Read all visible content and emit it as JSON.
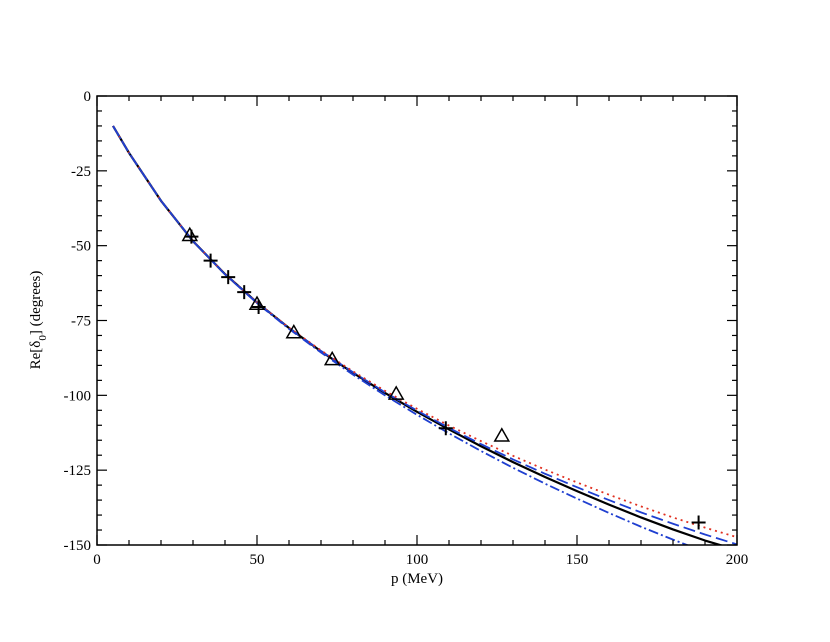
{
  "chart_data": {
    "type": "line",
    "title": "",
    "xlabel": "p (MeV)",
    "ylabel_base": "Re[δ",
    "ylabel_sub": "0",
    "ylabel_rest": "] (degrees)",
    "xlim": [
      0,
      200
    ],
    "ylim": [
      -150,
      0
    ],
    "x_ticks": [
      0,
      50,
      100,
      150,
      200
    ],
    "y_ticks": [
      0,
      -25,
      -50,
      -75,
      -100,
      -125,
      -150
    ],
    "x_minor_step": 10,
    "y_minor_step": 5,
    "grid": false,
    "legend": "none",
    "series": [
      {
        "style": "solid",
        "color": "#000000",
        "x": [
          5,
          10,
          20,
          30,
          40,
          50,
          60,
          70,
          80,
          90,
          100,
          110,
          120,
          130,
          140,
          150,
          160,
          170,
          180,
          190,
          200
        ],
        "y": [
          -10,
          -19,
          -35,
          -48.5,
          -59.5,
          -69,
          -77.5,
          -85.3,
          -92.5,
          -99.2,
          -105.5,
          -111.4,
          -117,
          -122.3,
          -127.3,
          -132,
          -136.5,
          -140.8,
          -144.8,
          -148.5,
          -151.7
        ]
      },
      {
        "style": "dashed",
        "color": "#1f3fd0",
        "x": [
          5,
          10,
          20,
          30,
          40,
          50,
          60,
          70,
          80,
          90,
          100,
          110,
          120,
          130,
          140,
          150,
          160,
          170,
          180,
          190,
          200
        ],
        "y": [
          -10,
          -19,
          -35,
          -48.5,
          -59.5,
          -69,
          -77.5,
          -85.2,
          -92.3,
          -99,
          -105.1,
          -110.9,
          -116.3,
          -121.4,
          -126.2,
          -130.7,
          -135,
          -139.1,
          -142.9,
          -146.5,
          -149.8
        ]
      },
      {
        "style": "dotted",
        "color": "#e03020",
        "x": [
          5,
          10,
          20,
          30,
          40,
          50,
          60,
          70,
          80,
          90,
          100,
          110,
          120,
          130,
          140,
          150,
          160,
          170,
          180,
          190,
          200
        ],
        "y": [
          -10,
          -19,
          -35,
          -48.5,
          -59.5,
          -69,
          -77.4,
          -85,
          -92,
          -98.5,
          -104.5,
          -110.1,
          -115.3,
          -120.2,
          -124.8,
          -129.1,
          -133.2,
          -137.1,
          -140.8,
          -144.2,
          -147.4
        ]
      },
      {
        "style": "dash-dot",
        "color": "#1f3fd0",
        "x": [
          5,
          10,
          20,
          30,
          40,
          50,
          60,
          70,
          80,
          90,
          100,
          110,
          120,
          130,
          140,
          150,
          160,
          170,
          180,
          190,
          200
        ],
        "y": [
          -10,
          -19,
          -35,
          -48.5,
          -59.6,
          -69.2,
          -77.8,
          -85.7,
          -93.1,
          -100,
          -106.5,
          -112.7,
          -118.6,
          -124.2,
          -129.5,
          -134.5,
          -139.3,
          -143.9,
          -148.2,
          -152.3,
          -156.2
        ]
      }
    ],
    "markers": {
      "plus": {
        "color": "#000000",
        "points": [
          [
            29.5,
            -47
          ],
          [
            35.5,
            -55
          ],
          [
            41,
            -60.5
          ],
          [
            46,
            -65.5
          ],
          [
            50.5,
            -70.5
          ],
          [
            109,
            -111
          ],
          [
            188,
            -142.5
          ]
        ]
      },
      "triangle": {
        "color": "#000000",
        "points": [
          [
            29,
            -46.5
          ],
          [
            50,
            -69.5
          ],
          [
            61.5,
            -79
          ],
          [
            73.5,
            -88
          ],
          [
            93.5,
            -99.5
          ],
          [
            126.5,
            -113.5
          ]
        ]
      }
    }
  }
}
